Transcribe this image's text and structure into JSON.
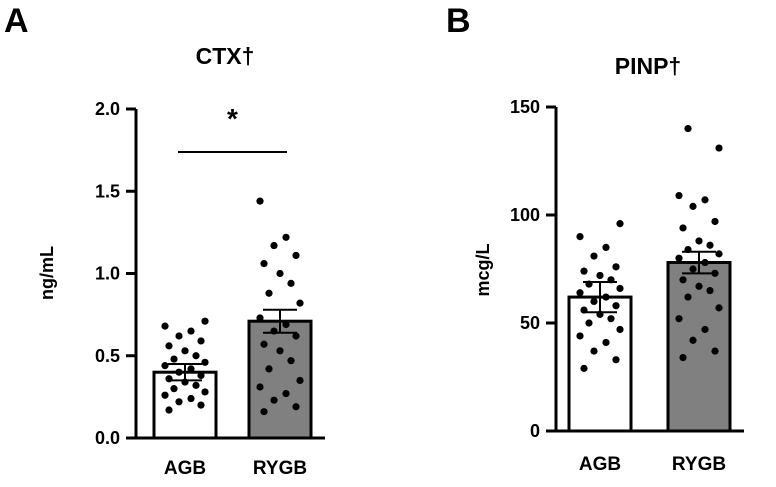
{
  "chart_data": [
    {
      "panel": "A",
      "type": "bar",
      "title": "CTX†",
      "ylabel": "ng/mL",
      "xlabel": "",
      "ylim": [
        0,
        2.0
      ],
      "yticks": [
        "0.0",
        "0.5",
        "1.0",
        "1.5",
        "2.0"
      ],
      "categories": [
        "AGB",
        "RYGB"
      ],
      "values": [
        0.4,
        0.71
      ],
      "error": [
        0.05,
        0.07
      ],
      "bar_colors": [
        "#ffffff",
        "#808080"
      ],
      "points": [
        [
          0.17,
          0.2,
          0.22,
          0.24,
          0.26,
          0.28,
          0.3,
          0.32,
          0.34,
          0.36,
          0.38,
          0.4,
          0.42,
          0.44,
          0.46,
          0.48,
          0.5,
          0.53,
          0.56,
          0.59,
          0.62,
          0.65,
          0.68,
          0.71
        ],
        [
          0.16,
          0.19,
          0.23,
          0.27,
          0.31,
          0.35,
          0.42,
          0.47,
          0.53,
          0.57,
          0.62,
          0.65,
          0.69,
          0.73,
          0.82,
          0.88,
          0.94,
          1.0,
          1.06,
          1.11,
          1.17,
          1.22,
          1.44
        ]
      ],
      "significance": {
        "label": "*",
        "between": [
          "AGB",
          "RYGB"
        ]
      }
    },
    {
      "panel": "B",
      "type": "bar",
      "title": "PINP†",
      "ylabel": "mcg/L",
      "xlabel": "",
      "ylim": [
        0,
        150
      ],
      "yticks": [
        "0",
        "50",
        "100",
        "150"
      ],
      "categories": [
        "AGB",
        "RYGB"
      ],
      "values": [
        62,
        78
      ],
      "error": [
        7,
        5
      ],
      "bar_colors": [
        "#ffffff",
        "#808080"
      ],
      "points": [
        [
          29,
          33,
          37,
          41,
          44,
          47,
          50,
          52,
          54,
          56,
          58,
          60,
          62,
          64,
          66,
          68,
          70,
          72,
          74,
          76,
          81,
          85,
          90,
          96
        ],
        [
          34,
          37,
          42,
          47,
          52,
          57,
          62,
          65,
          67,
          70,
          73,
          75,
          78,
          80,
          82,
          84,
          86,
          88,
          94,
          97,
          104,
          107,
          109,
          131,
          140
        ]
      ],
      "significance": null
    }
  ]
}
